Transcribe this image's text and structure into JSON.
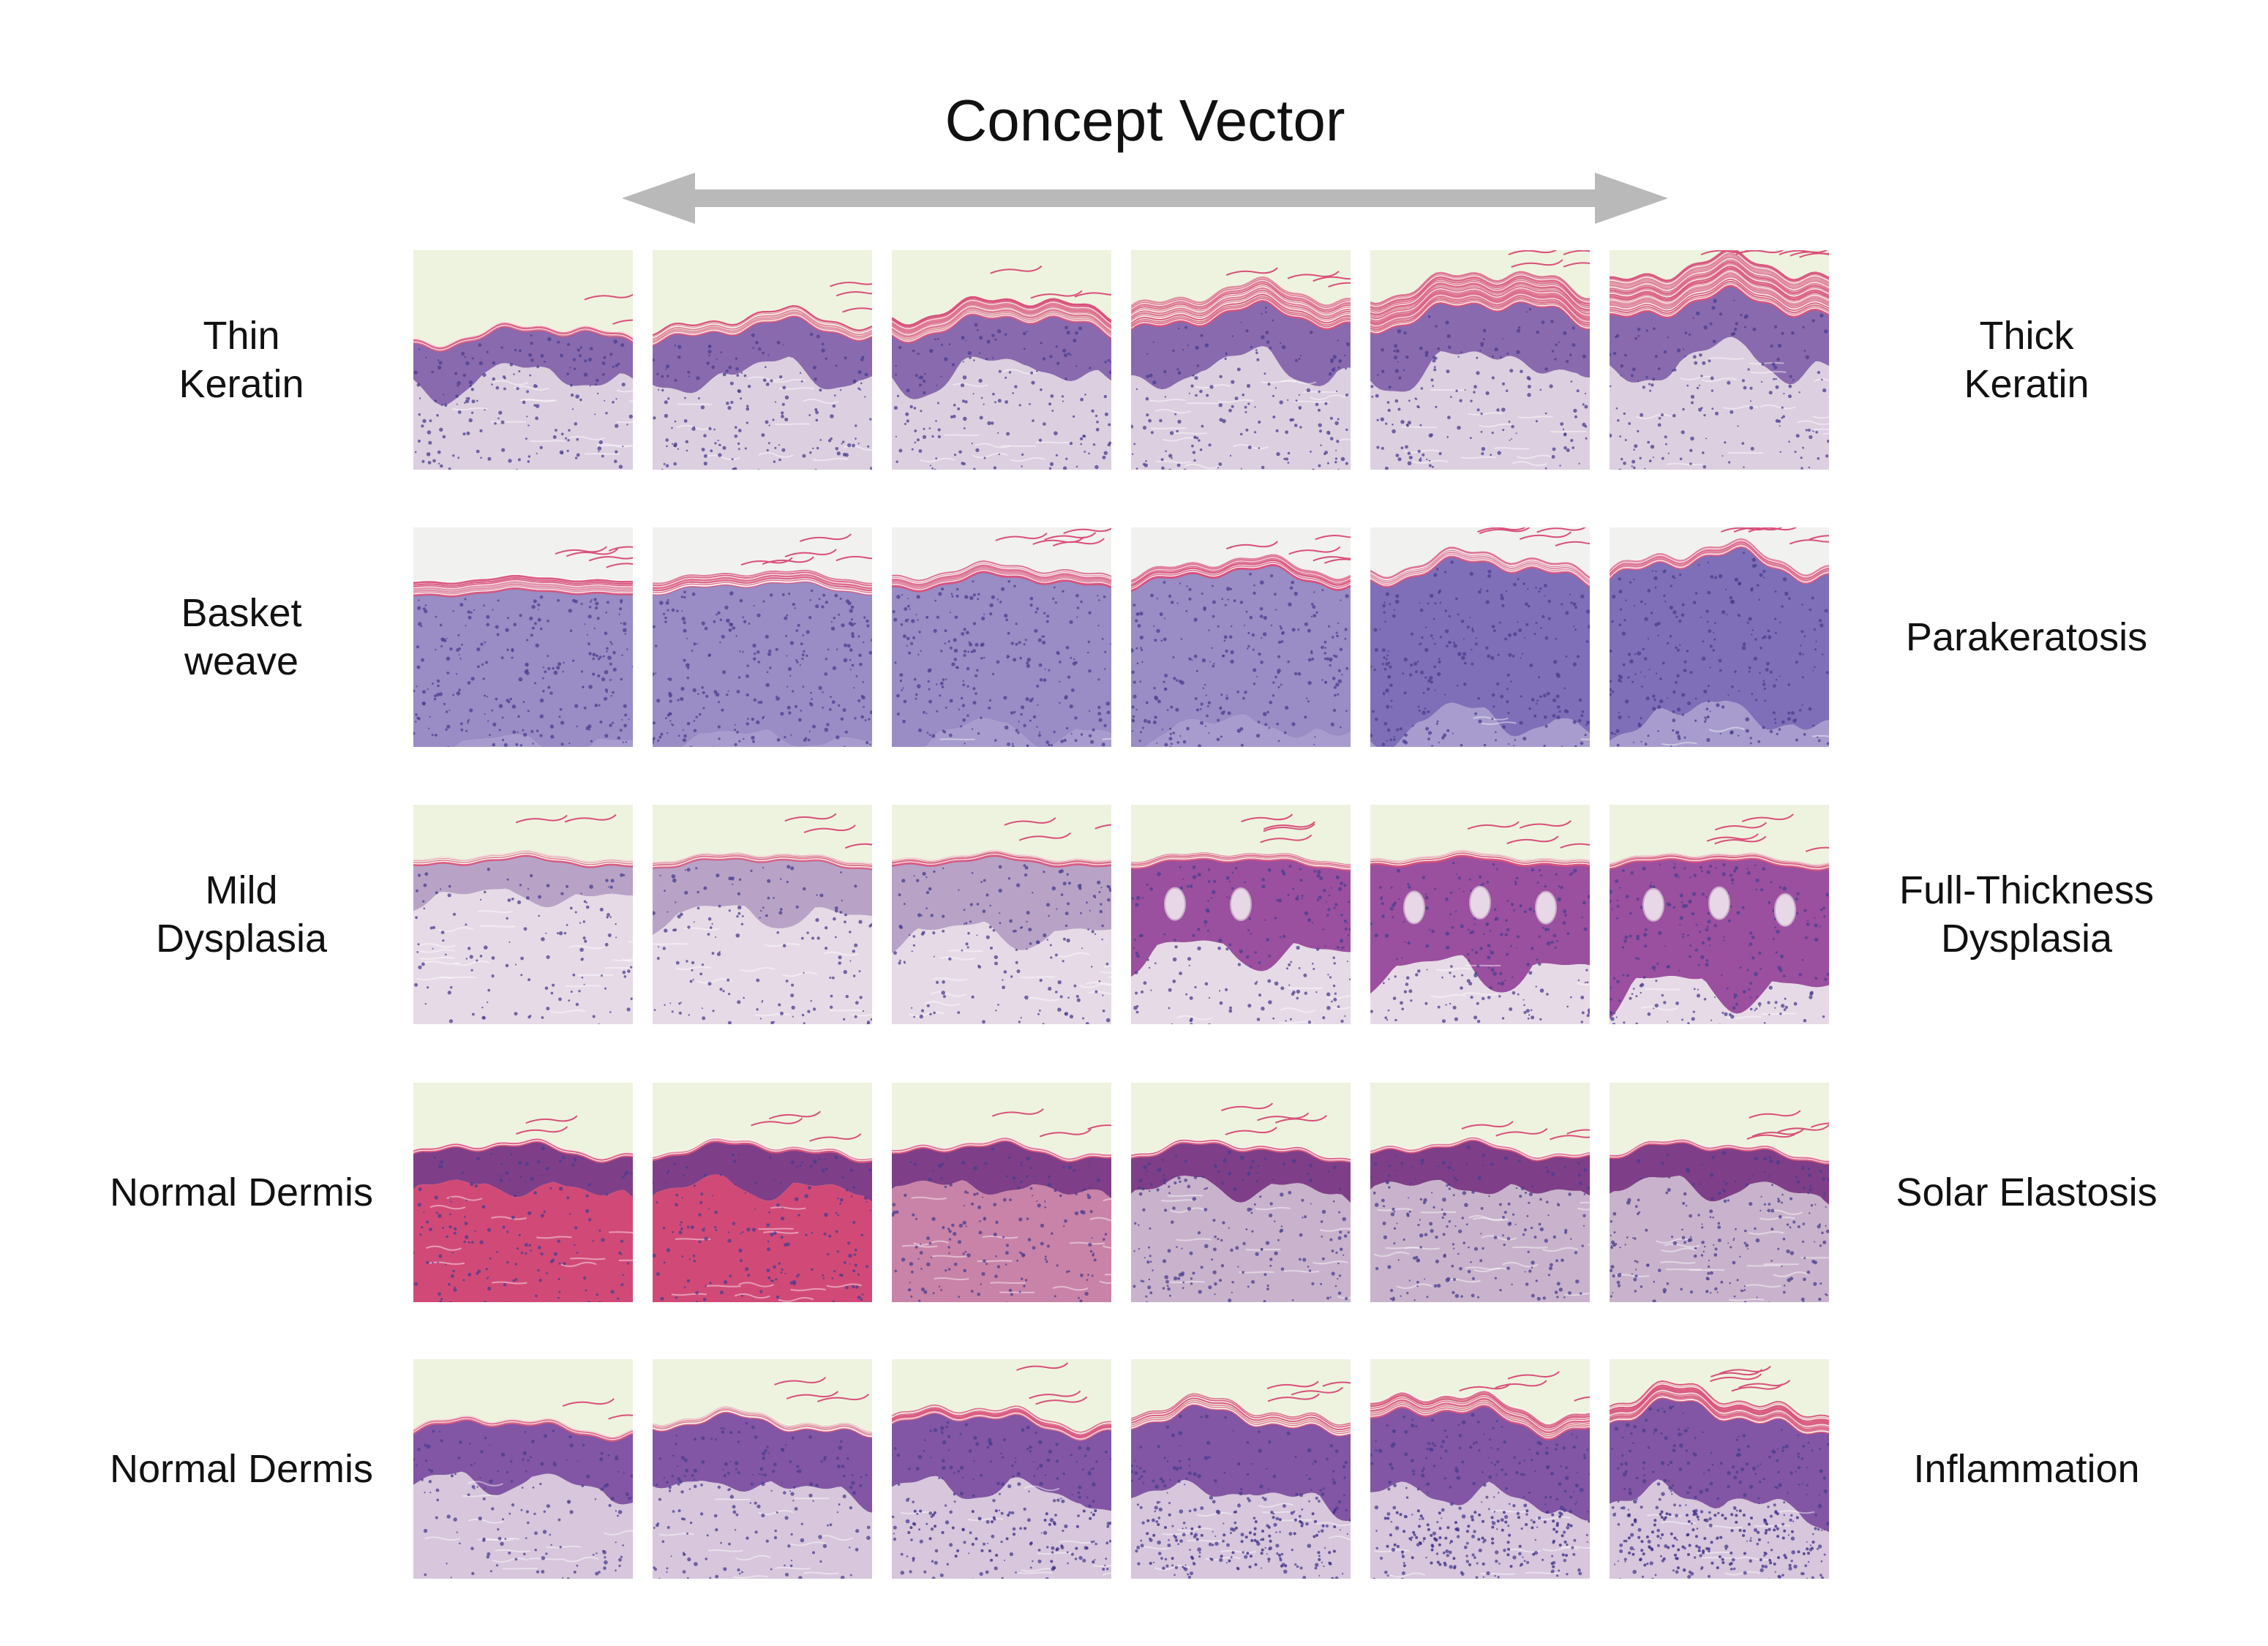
{
  "title": "Concept Vector",
  "colors": {
    "arrow": "#b9b9b9",
    "background_paper": "#eef3df",
    "keratin": "#d8507a",
    "epidermis": "#8a6aae",
    "dermis": "#d9c6da",
    "nuclei": "#4a3d8f"
  },
  "rows": [
    {
      "left_label": "Thin\nKeratin",
      "right_label": "Thick\nKeratin",
      "concept": "keratin",
      "tiles": [
        {
          "level": 0.0
        },
        {
          "level": 0.2
        },
        {
          "level": 0.4
        },
        {
          "level": 0.6
        },
        {
          "level": 0.8
        },
        {
          "level": 1.0
        }
      ]
    },
    {
      "left_label": "Basket\nweave",
      "right_label": "Parakeratosis",
      "concept": "parakeratosis",
      "tiles": [
        {
          "level": 0.0
        },
        {
          "level": 0.2
        },
        {
          "level": 0.4
        },
        {
          "level": 0.6
        },
        {
          "level": 0.8
        },
        {
          "level": 1.0
        }
      ]
    },
    {
      "left_label": "Mild\nDysplasia",
      "right_label": "Full-Thickness\nDysplasia",
      "concept": "dysplasia",
      "tiles": [
        {
          "level": 0.0
        },
        {
          "level": 0.2
        },
        {
          "level": 0.4
        },
        {
          "level": 0.6
        },
        {
          "level": 0.8
        },
        {
          "level": 1.0
        }
      ]
    },
    {
      "left_label": "Normal Dermis",
      "right_label": "Solar Elastosis",
      "concept": "elastosis",
      "tiles": [
        {
          "level": 0.0
        },
        {
          "level": 0.2
        },
        {
          "level": 0.4
        },
        {
          "level": 0.6
        },
        {
          "level": 0.8
        },
        {
          "level": 1.0
        }
      ]
    },
    {
      "left_label": "Normal Dermis",
      "right_label": "Inflammation",
      "concept": "inflammation",
      "tiles": [
        {
          "level": 0.0
        },
        {
          "level": 0.2
        },
        {
          "level": 0.4
        },
        {
          "level": 0.6
        },
        {
          "level": 0.8
        },
        {
          "level": 1.0
        }
      ]
    }
  ]
}
